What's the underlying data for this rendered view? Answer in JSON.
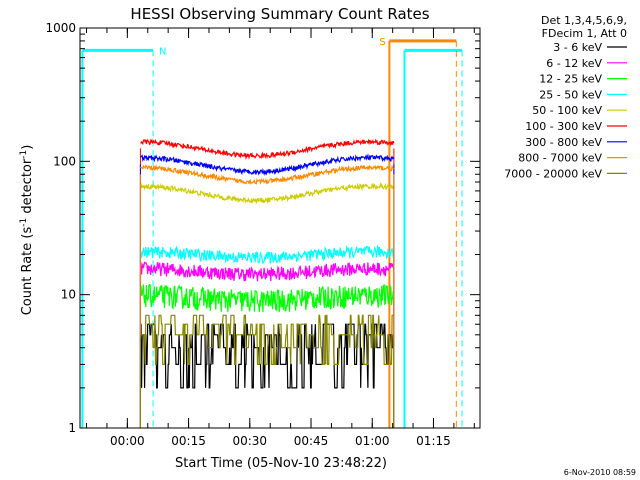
{
  "chart_data": {
    "type": "line",
    "title": "HESSI Observing Summary Count Rates",
    "xlabel": "Start Time (05-Nov-10 23:48:22)",
    "ylabel": "Count Rate (s",
    "ylabel_sup1": "-1",
    "ylabel_mid": " detector",
    "ylabel_sup2": "-1",
    "ylabel_end": ")",
    "ylog": true,
    "ylim": [
      1,
      1000
    ],
    "xlim_minutes": [
      -11.6,
      86.4
    ],
    "x_tick_labels": [
      "00:00",
      "00:15",
      "00:30",
      "00:45",
      "01:00",
      "01:15"
    ],
    "x_tick_minutes": [
      0,
      15,
      30,
      45,
      60,
      75
    ],
    "y_tick_labels": [
      "1",
      "10",
      "100",
      "1000"
    ],
    "y_tick_values": [
      1,
      10,
      100,
      1000
    ],
    "legend_header": [
      "Det 1,3,4,5,6,9,",
      "FDecim 1, Att 0"
    ],
    "legend_position": "right, outside plot",
    "series": [
      {
        "name": "3 - 6 keV",
        "color": "#000000",
        "baseline": 3,
        "noise": 0.55,
        "step": true
      },
      {
        "name": "6 - 12 keV",
        "color": "#ff00ff",
        "baseline": 15,
        "noise": 0.12
      },
      {
        "name": "12 - 25 keV",
        "color": "#00ff00",
        "baseline": 9.5,
        "noise": 0.2
      },
      {
        "name": "25 - 50 keV",
        "color": "#00ffff",
        "baseline": 20,
        "noise": 0.1
      },
      {
        "name": "50 - 100 keV",
        "color": "#cccc00",
        "baseline": 58,
        "noise": 0.04
      },
      {
        "name": "100 - 300 keV",
        "color": "#ff0000",
        "baseline": 125,
        "noise": 0.04
      },
      {
        "name": "300 - 800 keV",
        "color": "#0000ff",
        "baseline": 95,
        "noise": 0.04
      },
      {
        "name": "800 - 7000 keV",
        "color": "#ff8800",
        "baseline": 80,
        "noise": 0.04
      },
      {
        "name": "7000 - 20000 keV",
        "color": "#888800",
        "baseline": 4.5,
        "noise": 0.45,
        "step": true
      }
    ],
    "data_start_minute": 3.2,
    "data_end_minute": 65.3,
    "markers": [
      {
        "label": "N",
        "color": "#00ffff",
        "minute": 6.3,
        "level": 680
      },
      {
        "label": "S",
        "color": "#ff8800",
        "minute": 64.2,
        "level": 800
      }
    ],
    "saa_bands": [
      {
        "start": -11.0,
        "end": 6.3,
        "color": "#00ffff",
        "level": 680
      },
      {
        "start": 67.9,
        "end": 82.0,
        "color": "#00ffff",
        "level": 680
      },
      {
        "start": 64.2,
        "end": 80.6,
        "color": "#ff8800",
        "level": 800
      }
    ],
    "timestamp": "6-Nov-2010 08:59"
  }
}
